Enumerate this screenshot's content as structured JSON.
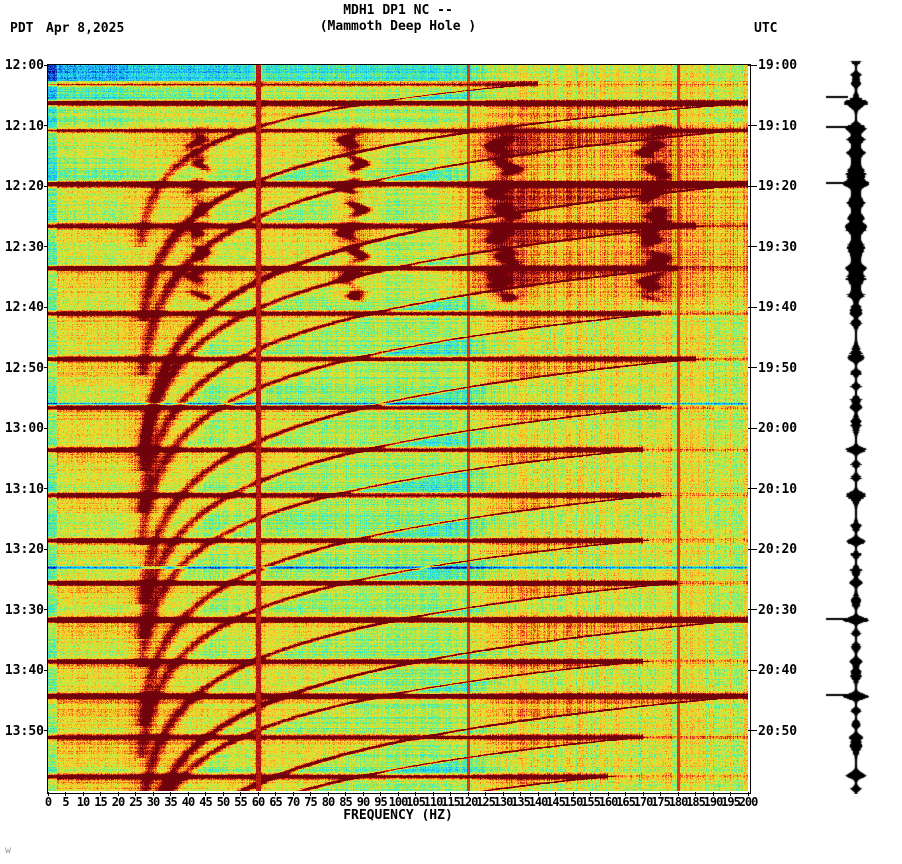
{
  "header": {
    "pdt_label": "PDT",
    "date": "Apr 8,2025",
    "title": "MDH1 DP1 NC --",
    "subtitle": "(Mammoth Deep Hole )",
    "utc_label": "UTC"
  },
  "chart_data": {
    "type": "heatmap",
    "title": "MDH1 DP1 NC --",
    "subtitle": "(Mammoth Deep Hole )",
    "xlabel": "FREQUENCY (HZ)",
    "x_min_hz": 0,
    "x_max_hz": 200,
    "x_tick_step_hz": 5,
    "x_ticks": [
      0,
      5,
      10,
      15,
      20,
      25,
      30,
      35,
      40,
      45,
      50,
      55,
      60,
      65,
      70,
      75,
      80,
      85,
      90,
      95,
      100,
      105,
      110,
      115,
      120,
      125,
      130,
      135,
      140,
      145,
      150,
      155,
      160,
      165,
      170,
      175,
      180,
      185,
      190,
      195,
      200
    ],
    "duration_min": 120,
    "left_axis": {
      "timezone": "PDT",
      "ticks": [
        "12:00",
        "12:10",
        "12:20",
        "12:30",
        "12:40",
        "12:50",
        "13:00",
        "13:10",
        "13:20",
        "13:30",
        "13:40",
        "13:50"
      ]
    },
    "right_axis": {
      "timezone": "UTC",
      "ticks": [
        "19:00",
        "19:10",
        "19:20",
        "19:30",
        "19:40",
        "19:50",
        "20:00",
        "20:10",
        "20:20",
        "20:30",
        "20:40",
        "20:50"
      ]
    },
    "powerline": {
      "main_hz": 60,
      "harmonics_hz": [
        120,
        180
      ]
    },
    "events": [
      {
        "t_min": 3.0,
        "strength": 0.5,
        "fmax_hz": 140,
        "tau_min": 6
      },
      {
        "t_min": 6.2,
        "strength": 1.0,
        "fmax_hz": 200,
        "tau_min": 8
      },
      {
        "t_min": 10.6,
        "strength": 0.65,
        "fmax_hz": 200,
        "tau_min": 9
      },
      {
        "t_min": 19.6,
        "strength": 1.0,
        "fmax_hz": 200,
        "tau_min": 10
      },
      {
        "t_min": 26.5,
        "strength": 0.7,
        "fmax_hz": 185,
        "tau_min": 9
      },
      {
        "t_min": 33.5,
        "strength": 0.7,
        "fmax_hz": 180,
        "tau_min": 9
      },
      {
        "t_min": 41.0,
        "strength": 0.65,
        "fmax_hz": 175,
        "tau_min": 8.5
      },
      {
        "t_min": 48.5,
        "strength": 0.7,
        "fmax_hz": 185,
        "tau_min": 9
      },
      {
        "t_min": 56.5,
        "strength": 0.65,
        "fmax_hz": 175,
        "tau_min": 8.5
      },
      {
        "t_min": 63.5,
        "strength": 0.65,
        "fmax_hz": 170,
        "tau_min": 8
      },
      {
        "t_min": 71.0,
        "strength": 0.65,
        "fmax_hz": 175,
        "tau_min": 8.5
      },
      {
        "t_min": 78.5,
        "strength": 0.65,
        "fmax_hz": 170,
        "tau_min": 8
      },
      {
        "t_min": 85.5,
        "strength": 0.7,
        "fmax_hz": 180,
        "tau_min": 8.5
      },
      {
        "t_min": 91.6,
        "strength": 1.0,
        "fmax_hz": 200,
        "tau_min": 9
      },
      {
        "t_min": 98.5,
        "strength": 0.65,
        "fmax_hz": 170,
        "tau_min": 8
      },
      {
        "t_min": 104.2,
        "strength": 1.0,
        "fmax_hz": 200,
        "tau_min": 9
      },
      {
        "t_min": 111.0,
        "strength": 0.65,
        "fmax_hz": 170,
        "tau_min": 8
      },
      {
        "t_min": 117.5,
        "strength": 0.6,
        "fmax_hz": 160,
        "tau_min": 8
      }
    ],
    "harmonics": {
      "t_start_min": 10,
      "t_end_min": 38.5,
      "bands": [
        {
          "freq_hz": 43,
          "strength": 0.55
        },
        {
          "freq_hz": 87,
          "strength": 0.85
        },
        {
          "freq_hz": 130,
          "strength": 0.95
        },
        {
          "freq_hz": 173,
          "strength": 0.9
        }
      ]
    },
    "quiet_lines_min": [
      10.4,
      55.9,
      83
    ],
    "trace": {
      "marks_min": [
        5.3,
        10.3,
        19.5,
        91.6,
        104.2
      ]
    },
    "colors": {
      "background": "#ffffff",
      "text": "#000000",
      "frame": "#000000",
      "trace": "#000000"
    }
  },
  "footer": {
    "watermark": "w"
  }
}
